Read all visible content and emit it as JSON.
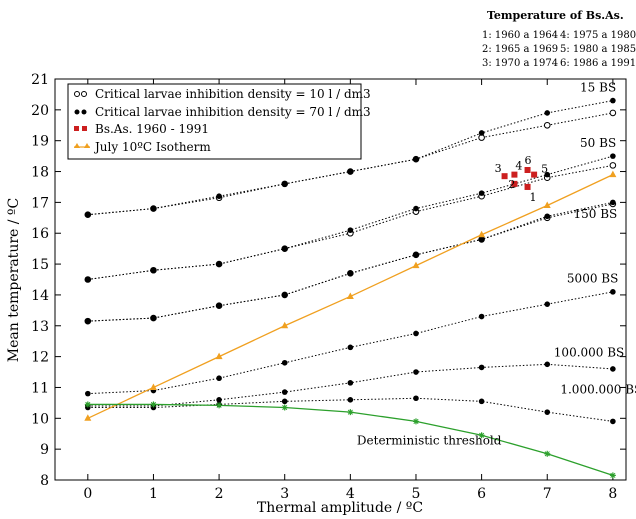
{
  "chart_data": {
    "type": "line",
    "xlabel": "Thermal amplitude / ºC",
    "ylabel": "Mean temperature / ºC",
    "xlim": [
      -0.5,
      8.2
    ],
    "ylim": [
      8,
      21
    ],
    "xticks": [
      0,
      1,
      2,
      3,
      4,
      5,
      6,
      7,
      8
    ],
    "yticks": [
      8,
      9,
      10,
      11,
      12,
      13,
      14,
      15,
      16,
      17,
      18,
      19,
      20,
      21
    ],
    "grid": false,
    "legend_position": "top-left",
    "legend": [
      {
        "label": "Critical larvae inhibition density = 10 l / dm3",
        "marker": "open-circle",
        "color": "#000000"
      },
      {
        "label": "Critical larvae inhibition density = 70 l / dm3",
        "marker": "filled-circle",
        "color": "#000000"
      },
      {
        "label": "Bs.As. 1960 - 1991",
        "marker": "square",
        "color": "#cc1f1f"
      },
      {
        "label": "July 10ºC Isotherm",
        "marker": "triangle",
        "color": "#f0a020"
      }
    ],
    "x": [
      0,
      1,
      2,
      3,
      4,
      5,
      6,
      7,
      8
    ],
    "series": [
      {
        "name": "15 BS",
        "density": "10",
        "style": "open",
        "values": [
          16.6,
          16.8,
          17.15,
          17.6,
          18.0,
          18.4,
          19.1,
          19.5,
          19.9
        ]
      },
      {
        "name": "15 BS",
        "density": "70",
        "style": "filled",
        "values": [
          16.6,
          16.8,
          17.2,
          17.6,
          18.0,
          18.4,
          19.25,
          19.9,
          20.3
        ]
      },
      {
        "name": "50 BS",
        "density": "10",
        "style": "open",
        "values": [
          14.5,
          14.8,
          15.0,
          15.5,
          16.0,
          16.7,
          17.2,
          17.8,
          18.2
        ]
      },
      {
        "name": "50 BS",
        "density": "70",
        "style": "filled",
        "values": [
          14.5,
          14.8,
          15.0,
          15.5,
          16.1,
          16.8,
          17.3,
          17.9,
          18.5
        ]
      },
      {
        "name": "150 BS",
        "density": "10",
        "style": "open",
        "values": [
          13.15,
          13.25,
          13.65,
          14.0,
          14.7,
          15.3,
          15.8,
          16.5,
          16.95
        ]
      },
      {
        "name": "150 BS",
        "density": "70",
        "style": "filled",
        "values": [
          13.15,
          13.25,
          13.65,
          14.0,
          14.7,
          15.3,
          15.8,
          16.55,
          17.0
        ]
      },
      {
        "name": "5000 BS",
        "density": "70",
        "style": "filled",
        "values": [
          10.8,
          10.9,
          11.3,
          11.8,
          12.3,
          12.75,
          13.3,
          13.7,
          14.1
        ]
      },
      {
        "name": "100.000 BS",
        "density": "70",
        "style": "filled",
        "values": [
          10.4,
          10.4,
          10.6,
          10.85,
          11.15,
          11.5,
          11.65,
          11.75,
          11.6
        ]
      },
      {
        "name": "1.000.000 BS",
        "density": "70",
        "style": "filled",
        "values": [
          10.35,
          10.35,
          10.45,
          10.55,
          10.6,
          10.65,
          10.55,
          10.2,
          9.9
        ]
      },
      {
        "name": "July 10ºC Isotherm",
        "style": "orange",
        "values": [
          10.0,
          11.0,
          12.0,
          13.0,
          13.95,
          14.95,
          15.95,
          16.9,
          17.9
        ]
      },
      {
        "name": "Deterministic threshold",
        "style": "green",
        "values": [
          10.45,
          10.45,
          10.42,
          10.35,
          10.2,
          9.9,
          9.45,
          8.85,
          8.15
        ]
      }
    ],
    "line_labels": [
      {
        "text": "15 BS",
        "x": 7.5,
        "y": 20.6
      },
      {
        "text": "50 BS",
        "x": 7.5,
        "y": 18.8
      },
      {
        "text": "150 BS",
        "x": 7.4,
        "y": 16.5
      },
      {
        "text": "5000 BS",
        "x": 7.3,
        "y": 14.4
      },
      {
        "text": "100.000 BS",
        "x": 7.1,
        "y": 12.0
      },
      {
        "text": "1.000.000 BS",
        "x": 7.2,
        "y": 10.8
      },
      {
        "text": "Deterministic threshold",
        "x": 4.1,
        "y": 9.15
      }
    ],
    "bsas_points": [
      {
        "label": "1",
        "x": 6.7,
        "y": 17.5
      },
      {
        "label": "2",
        "x": 6.5,
        "y": 17.6
      },
      {
        "label": "3",
        "x": 6.35,
        "y": 17.85
      },
      {
        "label": "4",
        "x": 6.5,
        "y": 17.9
      },
      {
        "label": "5",
        "x": 6.8,
        "y": 17.9
      },
      {
        "label": "6",
        "x": 6.7,
        "y": 18.05
      }
    ],
    "period_key": {
      "title": "Temperature of Bs.As.",
      "items": [
        "1: 1960 a 1964",
        "4: 1975 a 1980",
        "2: 1965 a 1969",
        "5: 1980 a 1985",
        "3: 1970 a 1974",
        "6: 1986 a 1991"
      ]
    },
    "colors": {
      "black": "#000000",
      "bsas": "#cc1f1f",
      "isotherm": "#f0a020",
      "threshold": "#2ca02c"
    }
  }
}
